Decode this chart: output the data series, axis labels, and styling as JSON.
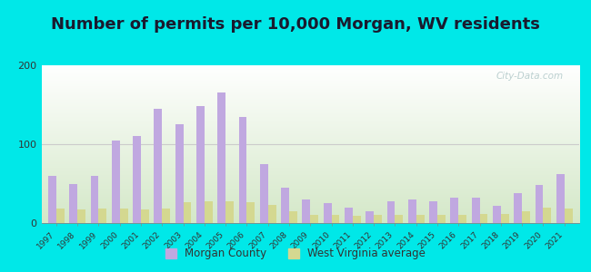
{
  "title": "Number of permits per 10,000 Morgan, WV residents",
  "years": [
    1997,
    1998,
    1999,
    2000,
    2001,
    2002,
    2003,
    2004,
    2005,
    2006,
    2007,
    2008,
    2009,
    2010,
    2011,
    2012,
    2013,
    2014,
    2015,
    2016,
    2017,
    2018,
    2019,
    2020,
    2021
  ],
  "morgan_county": [
    60,
    50,
    60,
    105,
    110,
    145,
    125,
    148,
    165,
    135,
    75,
    45,
    30,
    25,
    20,
    15,
    28,
    30,
    28,
    32,
    32,
    22,
    38,
    48,
    62
  ],
  "wv_average": [
    18,
    17,
    18,
    18,
    17,
    18,
    27,
    28,
    28,
    27,
    23,
    15,
    10,
    10,
    9,
    10,
    10,
    10,
    10,
    10,
    12,
    12,
    15,
    20,
    18
  ],
  "morgan_color": "#c0a8e0",
  "wv_color": "#d4d890",
  "background_outer": "#00e8e8",
  "ylim": [
    0,
    200
  ],
  "yticks": [
    0,
    100,
    200
  ],
  "title_fontsize": 13,
  "legend_morgan": "Morgan County",
  "legend_wv": "West Virginia average",
  "bar_width": 0.38
}
